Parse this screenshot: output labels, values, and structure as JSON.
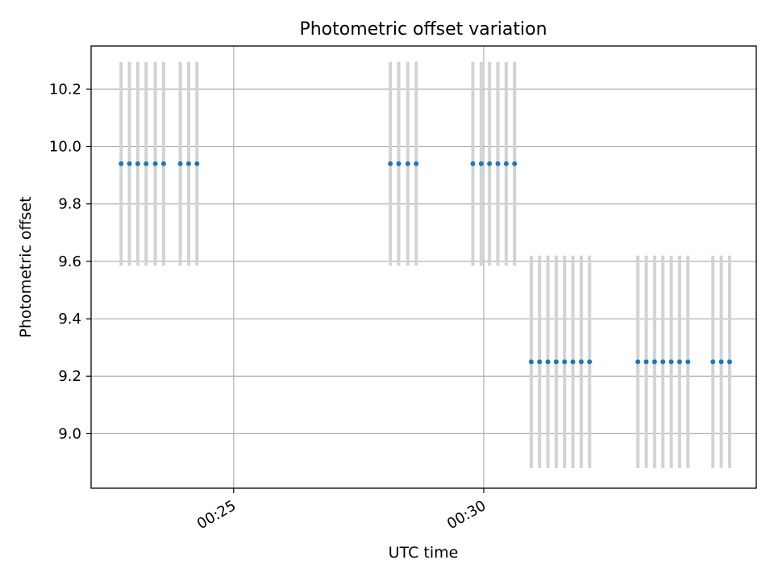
{
  "chart_data": {
    "type": "scatter",
    "title": "Photometric offset variation",
    "xlabel": "UTC time",
    "ylabel": "Photometric offset",
    "x_axis_kind": "time",
    "xlim": [
      "00:22:09",
      "00:35:27"
    ],
    "ylim": [
      8.81,
      10.35
    ],
    "grid": true,
    "x_ticks": [
      "00:25",
      "00:30"
    ],
    "y_ticks": [
      "9.0",
      "9.2",
      "9.4",
      "9.6",
      "9.8",
      "10.0",
      "10.2"
    ],
    "colors": {
      "points": "#1f77b4",
      "error_bars": "#d3d3d3"
    },
    "series": [
      {
        "x": [
          "00:22:45",
          "00:22:55",
          "00:23:05",
          "00:23:15",
          "00:23:26",
          "00:23:36",
          "00:23:56",
          "00:24:06",
          "00:24:16"
        ],
        "y": [
          9.94,
          9.94,
          9.94,
          9.94,
          9.94,
          9.94,
          9.94,
          9.94,
          9.94
        ],
        "yerr": [
          0.355,
          0.355,
          0.355,
          0.355,
          0.355,
          0.355,
          0.355,
          0.355,
          0.355
        ]
      },
      {
        "x": [
          "00:28:08",
          "00:28:18",
          "00:28:29",
          "00:28:39"
        ],
        "y": [
          9.94,
          9.94,
          9.94,
          9.94
        ],
        "yerr": [
          0.355,
          0.355,
          0.355,
          0.355
        ]
      },
      {
        "x": [
          "00:29:47",
          "00:29:57",
          "00:30:07",
          "00:30:17",
          "00:30:27",
          "00:30:37"
        ],
        "y": [
          9.94,
          9.94,
          9.94,
          9.94,
          9.94,
          9.94
        ],
        "yerr": [
          0.355,
          0.355,
          0.355,
          0.355,
          0.355,
          0.355
        ]
      },
      {
        "x": [
          "00:30:57",
          "00:31:07",
          "00:31:17",
          "00:31:27",
          "00:31:37",
          "00:31:47",
          "00:31:57",
          "00:32:07"
        ],
        "y": [
          9.25,
          9.25,
          9.25,
          9.25,
          9.25,
          9.25,
          9.25,
          9.25
        ],
        "yerr": [
          0.37,
          0.37,
          0.37,
          0.37,
          0.37,
          0.37,
          0.37,
          0.37
        ]
      },
      {
        "x": [
          "00:33:05",
          "00:33:15",
          "00:33:25",
          "00:33:35",
          "00:33:45",
          "00:33:55",
          "00:34:05"
        ],
        "y": [
          9.25,
          9.25,
          9.25,
          9.25,
          9.25,
          9.25,
          9.25
        ],
        "yerr": [
          0.37,
          0.37,
          0.37,
          0.37,
          0.37,
          0.37,
          0.37
        ]
      },
      {
        "x": [
          "00:34:35",
          "00:34:45",
          "00:34:55"
        ],
        "y": [
          9.25,
          9.25,
          9.25
        ],
        "yerr": [
          0.37,
          0.37,
          0.37
        ]
      }
    ]
  }
}
